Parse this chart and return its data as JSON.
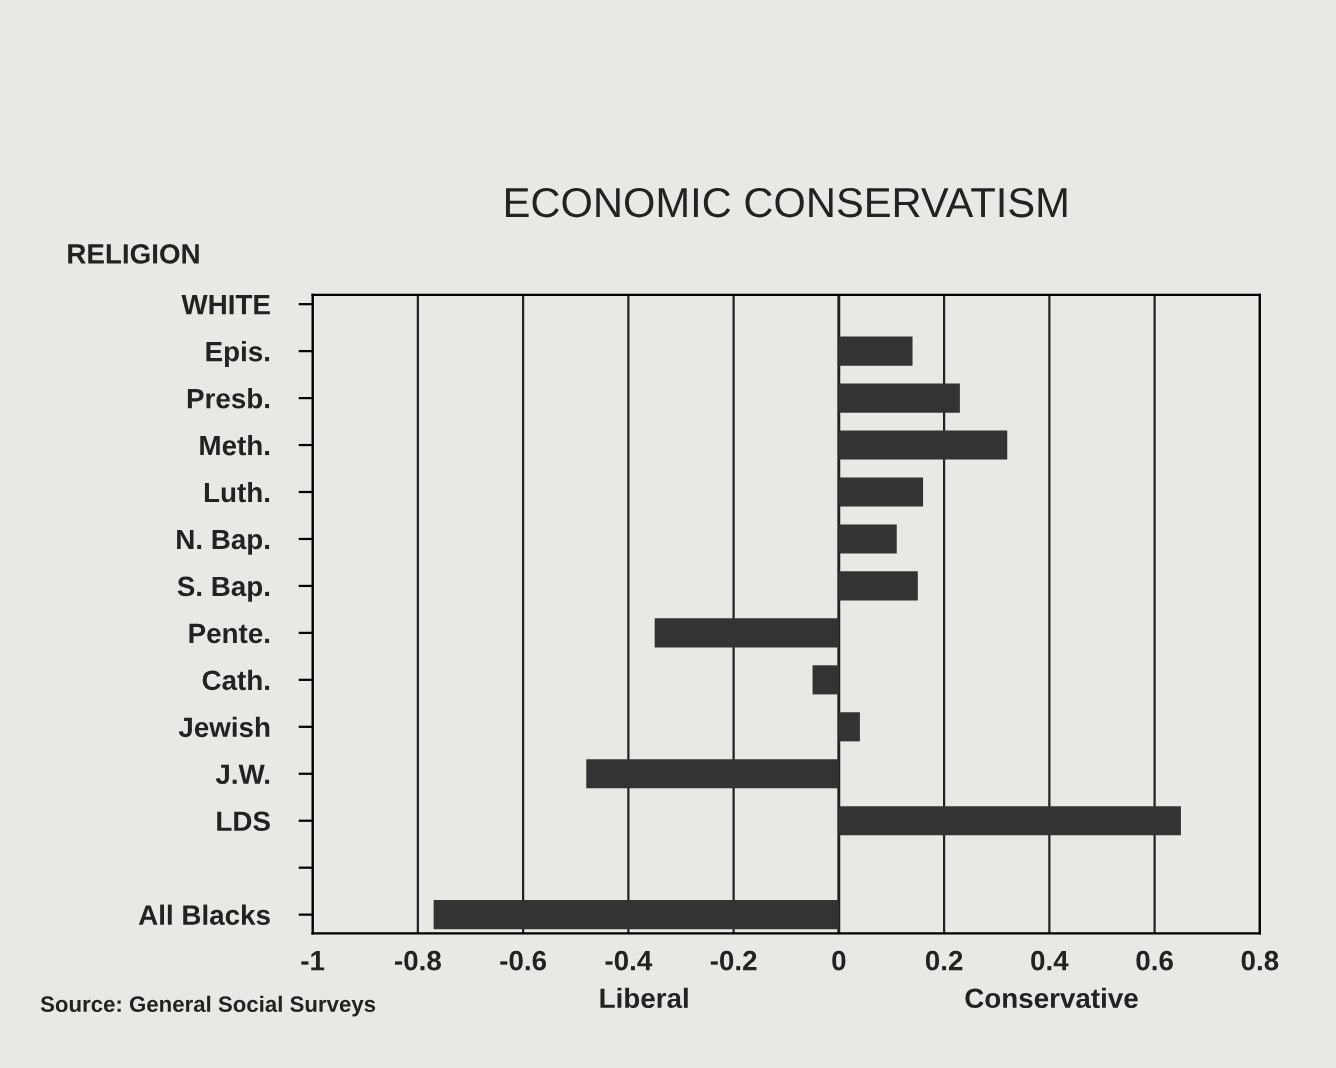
{
  "chart_data": {
    "type": "bar",
    "orientation": "horizontal",
    "title": "ECONOMIC CONSERVATISM",
    "ylabel": "RELIGION",
    "categories": [
      "WHITE",
      "Epis.",
      "Presb.",
      "Meth.",
      "Luth.",
      "N. Bap.",
      "S. Bap.",
      "Pente.",
      "Cath.",
      "Jewish",
      "J.W.",
      "LDS",
      null,
      "All Blacks"
    ],
    "values": [
      null,
      0.14,
      0.23,
      0.32,
      0.16,
      0.11,
      0.15,
      -0.35,
      -0.05,
      0.04,
      -0.48,
      0.65,
      null,
      -0.77
    ],
    "color": "#333333",
    "xlim": [
      -1,
      0.8
    ],
    "xticks": [
      -1,
      -0.8,
      -0.6,
      -0.4,
      -0.2,
      0,
      0.2,
      0.4,
      0.6,
      0.8
    ],
    "grid": "x",
    "annotations": [
      "Liberal",
      "Conservative",
      "Source: General Social Surveys"
    ]
  }
}
